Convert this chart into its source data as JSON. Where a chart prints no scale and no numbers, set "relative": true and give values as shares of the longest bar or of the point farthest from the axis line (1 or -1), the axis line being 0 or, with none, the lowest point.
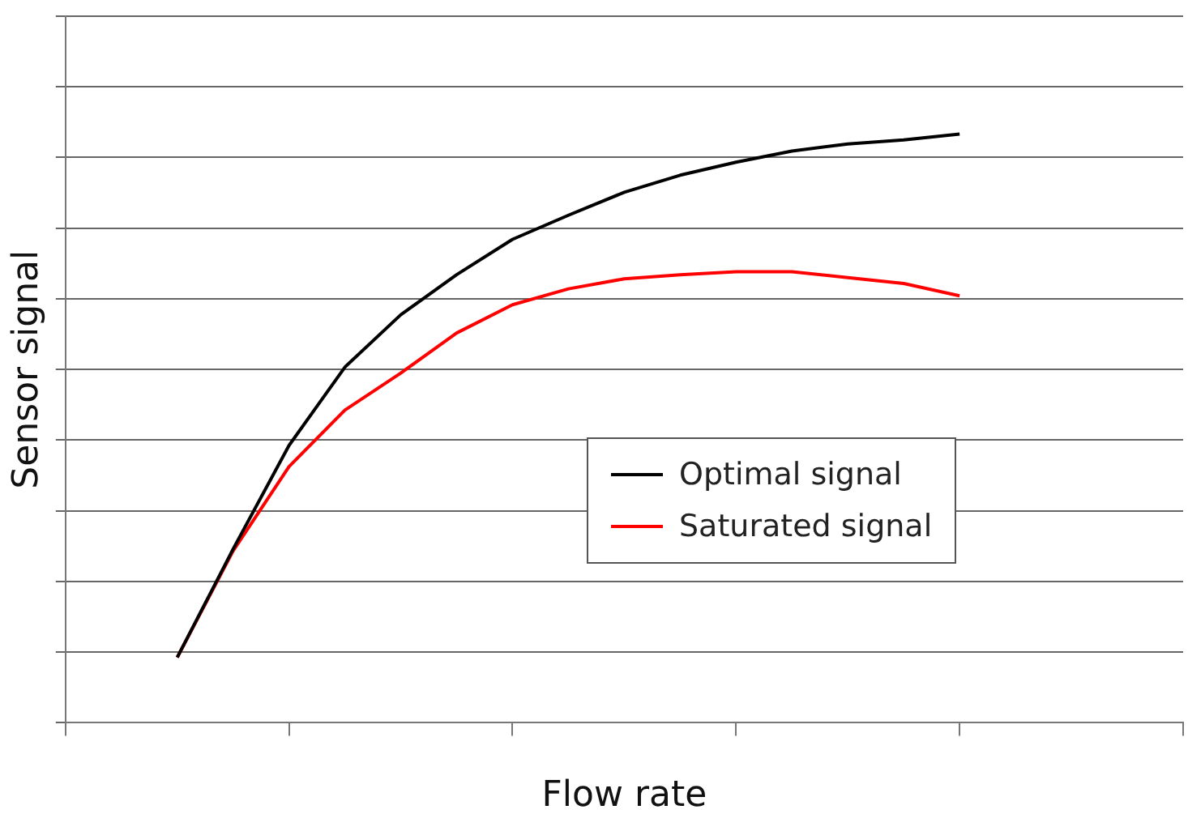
{
  "chart_data": {
    "type": "line",
    "xlabel": "Flow rate",
    "ylabel": "Sensor signal",
    "relative": true,
    "grid": "y",
    "legend": "right",
    "marker": "none",
    "line_style": "solid",
    "categories": [
      null,
      null,
      null,
      null,
      null,
      null,
      null,
      null,
      null,
      null,
      null,
      null,
      null,
      null,
      null,
      null,
      null,
      null,
      null,
      null,
      null
    ],
    "series": [
      {
        "name": "Optimal signal",
        "color": "#000000",
        "values": [
          null,
          null,
          0.111,
          0.295,
          0.471,
          0.604,
          0.693,
          0.761,
          0.821,
          0.862,
          0.901,
          0.93,
          0.952,
          0.971,
          0.983,
          0.99,
          1.0,
          null,
          null,
          null,
          null
        ]
      },
      {
        "name": "Saturated signal",
        "color": "#ff0000",
        "values": [
          null,
          null,
          0.111,
          0.292,
          0.435,
          0.531,
          0.594,
          0.662,
          0.71,
          0.737,
          0.754,
          0.761,
          0.766,
          0.766,
          0.756,
          0.746,
          0.725,
          null,
          null,
          null,
          null
        ]
      }
    ]
  }
}
